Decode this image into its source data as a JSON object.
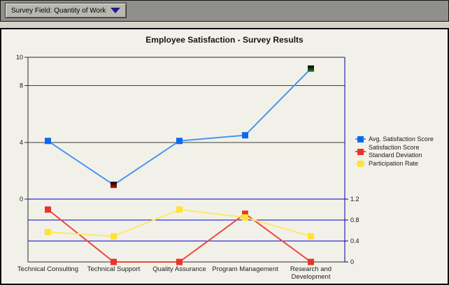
{
  "toolbar": {
    "dropdown_label": "Survey Field: Quantity of Work",
    "dropdown_arrow_color": "#1c1c8e"
  },
  "chart_data": {
    "type": "line",
    "title": "Employee Satisfaction - Survey Results",
    "categories": [
      "Technical Consulting",
      "Technical Support",
      "Quality Assurance",
      "Program Management",
      "Research and Development"
    ],
    "series": [
      {
        "name": "Avg. Satisfaction Score",
        "axis": "left",
        "marker_color": "#0c68ee",
        "line_color": "#4b94f0",
        "values": [
          4.1,
          1.0,
          4.1,
          4.5,
          9.2
        ],
        "point_highlights": [
          {
            "index": 1,
            "style": "black-red-gradient"
          },
          {
            "index": 4,
            "style": "black-green-gradient"
          }
        ]
      },
      {
        "name": "Satisfaction Score Standard Deviation",
        "axis": "right",
        "marker_color": "#e8342b",
        "line_color": "#ee4638",
        "values": [
          1.0,
          0.0,
          0.0,
          0.92,
          0.0
        ],
        "point_highlights": []
      },
      {
        "name": "Participation Rate",
        "axis": "right",
        "marker_color": "#ffe233",
        "line_color": "#ffe76a",
        "values": [
          0.57,
          0.49,
          1.0,
          0.85,
          0.49
        ],
        "point_highlights": []
      }
    ],
    "left_axis": {
      "min": 0,
      "max": 10,
      "tick_labels": [
        "10",
        "8",
        "4",
        "0"
      ],
      "gridlines": [
        8,
        4
      ],
      "grid_color": "#3a3a3a",
      "axis_color": "#2a2a2a"
    },
    "right_axis": {
      "min": 0,
      "max": 1.2,
      "tick_labels": [
        "1.2",
        "0.8",
        "0.4",
        "0"
      ],
      "gridlines": [
        1.2,
        0.8,
        0.4
      ],
      "grid_color": "#0000cc",
      "axis_color": "#000099"
    },
    "legend_position": "right",
    "grid": true
  }
}
